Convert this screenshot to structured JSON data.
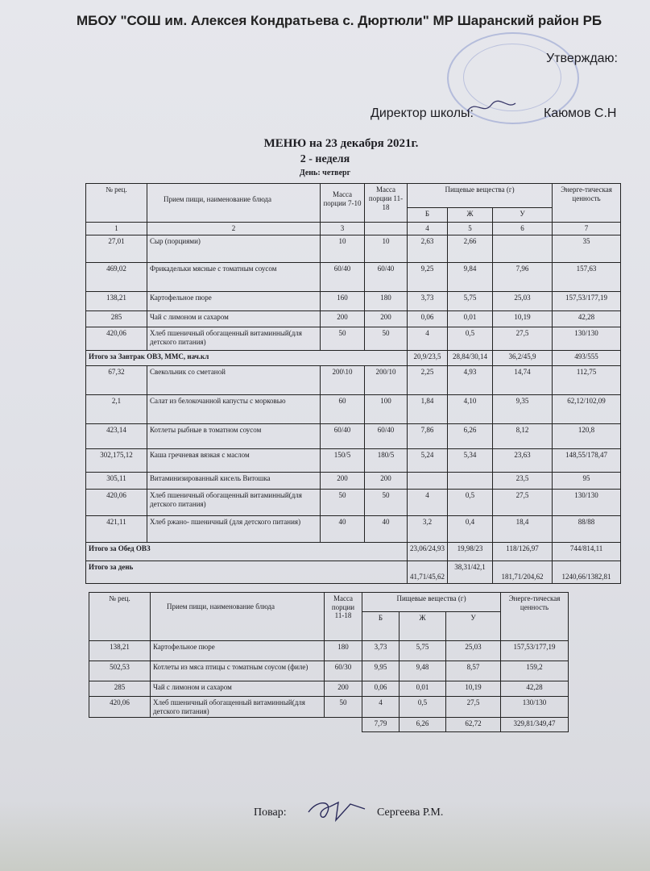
{
  "header": {
    "school": "МБОУ \"СОШ им. Алексея Кондратьева с. Дюртюли\" МР Шаранский район РБ",
    "approve": "Утверждаю:",
    "director_label": "Директор школы:",
    "director_name": "Каюмов С.Н"
  },
  "title": {
    "menu": "МЕНЮ на  23 декабря  2021г.",
    "week": "2 - неделя",
    "day": "День: четверг"
  },
  "table1": {
    "headers": {
      "rec": "№ рец.",
      "name": "Прием пищи, наименование блюда",
      "mass1": "Масса порции 7-10",
      "mass2": "Масса порции 11-18",
      "nutrients": "Пищевые вещества (г)",
      "b": "Б",
      "zh": "Ж",
      "u": "У",
      "energy": "Энерге-тическая ценность"
    },
    "colnums": [
      "1",
      "2",
      "3",
      "",
      "4",
      "5",
      "6",
      "7"
    ],
    "rows": [
      {
        "type": "item",
        "cells": [
          "27,01",
          "Сыр (порциями)",
          "10",
          "10",
          "2,63",
          "2,66",
          "",
          "35"
        ]
      },
      {
        "type": "item",
        "cells": [
          "469,02",
          "Фрикадельки мясные с томатным соусом",
          "60/40",
          "60/40",
          "9,25",
          "9,84",
          "7,96",
          "157,63"
        ]
      },
      {
        "type": "item",
        "cells": [
          "138,21",
          "Картофельное пюре",
          "160",
          "180",
          "3,73",
          "5,75",
          "25,03",
          "157,53/177,19"
        ]
      },
      {
        "type": "item",
        "cells": [
          "285",
          "Чай с  лимоном и сахаром",
          "200",
          "200",
          "0,06",
          "0,01",
          "10,19",
          "42,28"
        ]
      },
      {
        "type": "item",
        "cells": [
          "420,06",
          "Хлеб пшеничный обогащенный  витаминный(для детского питания)",
          "50",
          "50",
          "4",
          "0,5",
          "27,5",
          "130/130"
        ]
      },
      {
        "type": "total",
        "cells": [
          "Итого за Завтрак ОВЗ, ММС, нач.кл",
          "20,9/23,5",
          "28,84/30,14",
          "36,2/45,9",
          "493/555"
        ]
      },
      {
        "type": "item",
        "cells": [
          "67,32",
          "Свекольник со сметаной",
          "200\\10",
          "200/10",
          "2,25",
          "4,93",
          "14,74",
          "112,75"
        ]
      },
      {
        "type": "item",
        "cells": [
          "2,1",
          "Салат из белокочанной капусты с морковью",
          "60",
          "100",
          "1,84",
          "4,10",
          "9,35",
          "62,12/102,09"
        ]
      },
      {
        "type": "item",
        "cells": [
          "423,14",
          "Котлеты рыбные в томатном соусом",
          "60/40",
          "60/40",
          "7,86",
          "6,26",
          "8,12",
          "120,8"
        ]
      },
      {
        "type": "item",
        "cells": [
          "302,175,12",
          "Каша гречневая вязкая с маслом",
          "150/5",
          "180/5",
          "5,24",
          "5,34",
          "23,63",
          "148,55/178,47"
        ]
      },
      {
        "type": "item",
        "cells": [
          "305,11",
          "Витаминизированный кисель Витошка",
          "200",
          "200",
          "",
          "",
          "23,5",
          "95"
        ]
      },
      {
        "type": "item",
        "cells": [
          "420,06",
          "Хлеб пшеничный обогащенный  витаминный(для детского питания)",
          "50",
          "50",
          "4",
          "0,5",
          "27,5",
          "130/130"
        ]
      },
      {
        "type": "item",
        "cells": [
          "421,11",
          "Хлеб ржано- пшеничный  (для детского питания)",
          "40",
          "40",
          "3,2",
          "0,4",
          "18,4",
          "88/88"
        ]
      },
      {
        "type": "total",
        "cells": [
          "Итого за Обед ОВЗ",
          "23,06/24,93",
          "19,98/23",
          "118/126,97",
          "744/814,11"
        ]
      },
      {
        "type": "total",
        "cells": [
          "Итого за день",
          "41,71/45,62",
          "38,31/42,1",
          "181,71/204,62",
          "1240,66/1382,81"
        ]
      }
    ]
  },
  "table2": {
    "headers": {
      "rec": "№ рец.",
      "name": "Прием пищи, наименование блюда",
      "mass": "Масса порции 11-18",
      "nutrients": "Пищевые вещества (г)",
      "b": "Б",
      "zh": "Ж",
      "u": "У",
      "energy": "Энерге-тическая ценность"
    },
    "rows": [
      [
        "138,21",
        "Картофельное пюре",
        "180",
        "3,73",
        "5,75",
        "25,03",
        "157,53/177,19"
      ],
      [
        "502,53",
        "Котлеты из мяса птицы с томатным соусом (филе)",
        "60/30",
        "9,95",
        "9,48",
        "8,57",
        "159,2"
      ],
      [
        "285",
        "Чай с  лимоном и сахаром",
        "200",
        "0,06",
        "0,01",
        "10,19",
        "42,28"
      ],
      [
        "420,06",
        "Хлеб пшеничный обогащенный  витаминный(для детского питания)",
        "50",
        "4",
        "0,5",
        "27,5",
        "130/130"
      ]
    ],
    "total": [
      "7,79",
      "6,26",
      "62,72",
      "329,81/349,47"
    ]
  },
  "footer": {
    "cook_label": "Повар:",
    "cook_name": "Сергеева Р.М."
  }
}
